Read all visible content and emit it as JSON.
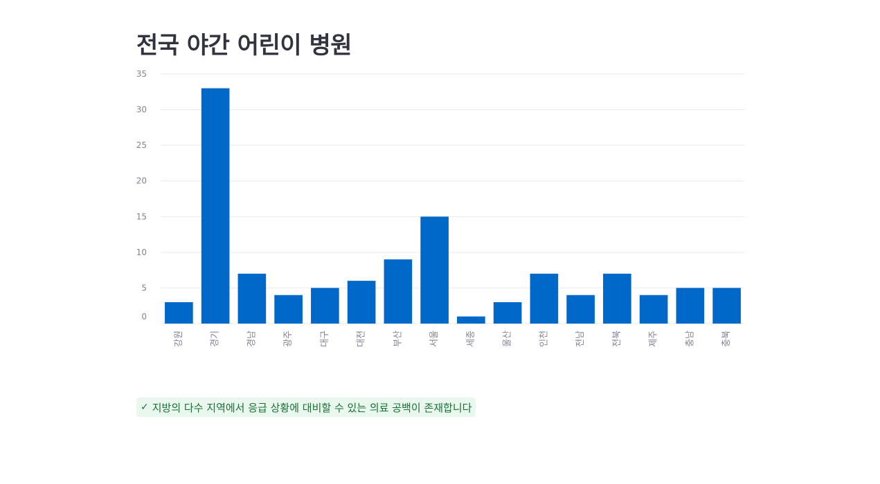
{
  "page": {
    "title": "전국 야간 어린이 병원"
  },
  "callout": {
    "icon": "check-icon",
    "text": "지방의 다수 지역에서 응급 상황에 대비할 수 있는 의료 공백이 존재합니다",
    "color": "#177233",
    "background": "#e9f7ee"
  },
  "chart_data": {
    "type": "bar",
    "title": "",
    "xlabel": "",
    "ylabel": "",
    "categories": [
      "강원",
      "경기",
      "경남",
      "광주",
      "대구",
      "대전",
      "부산",
      "서울",
      "세종",
      "울산",
      "인천",
      "전남",
      "전북",
      "제주",
      "충남",
      "충북"
    ],
    "values": [
      3,
      33,
      7,
      4,
      5,
      6,
      9,
      15,
      1,
      3,
      7,
      4,
      7,
      4,
      5,
      5
    ],
    "ylim": [
      0,
      35
    ],
    "yticks": [
      0,
      5,
      10,
      15,
      20,
      25,
      30,
      35
    ],
    "grid": true,
    "legend": "none",
    "bar_color": "#0068c9"
  }
}
